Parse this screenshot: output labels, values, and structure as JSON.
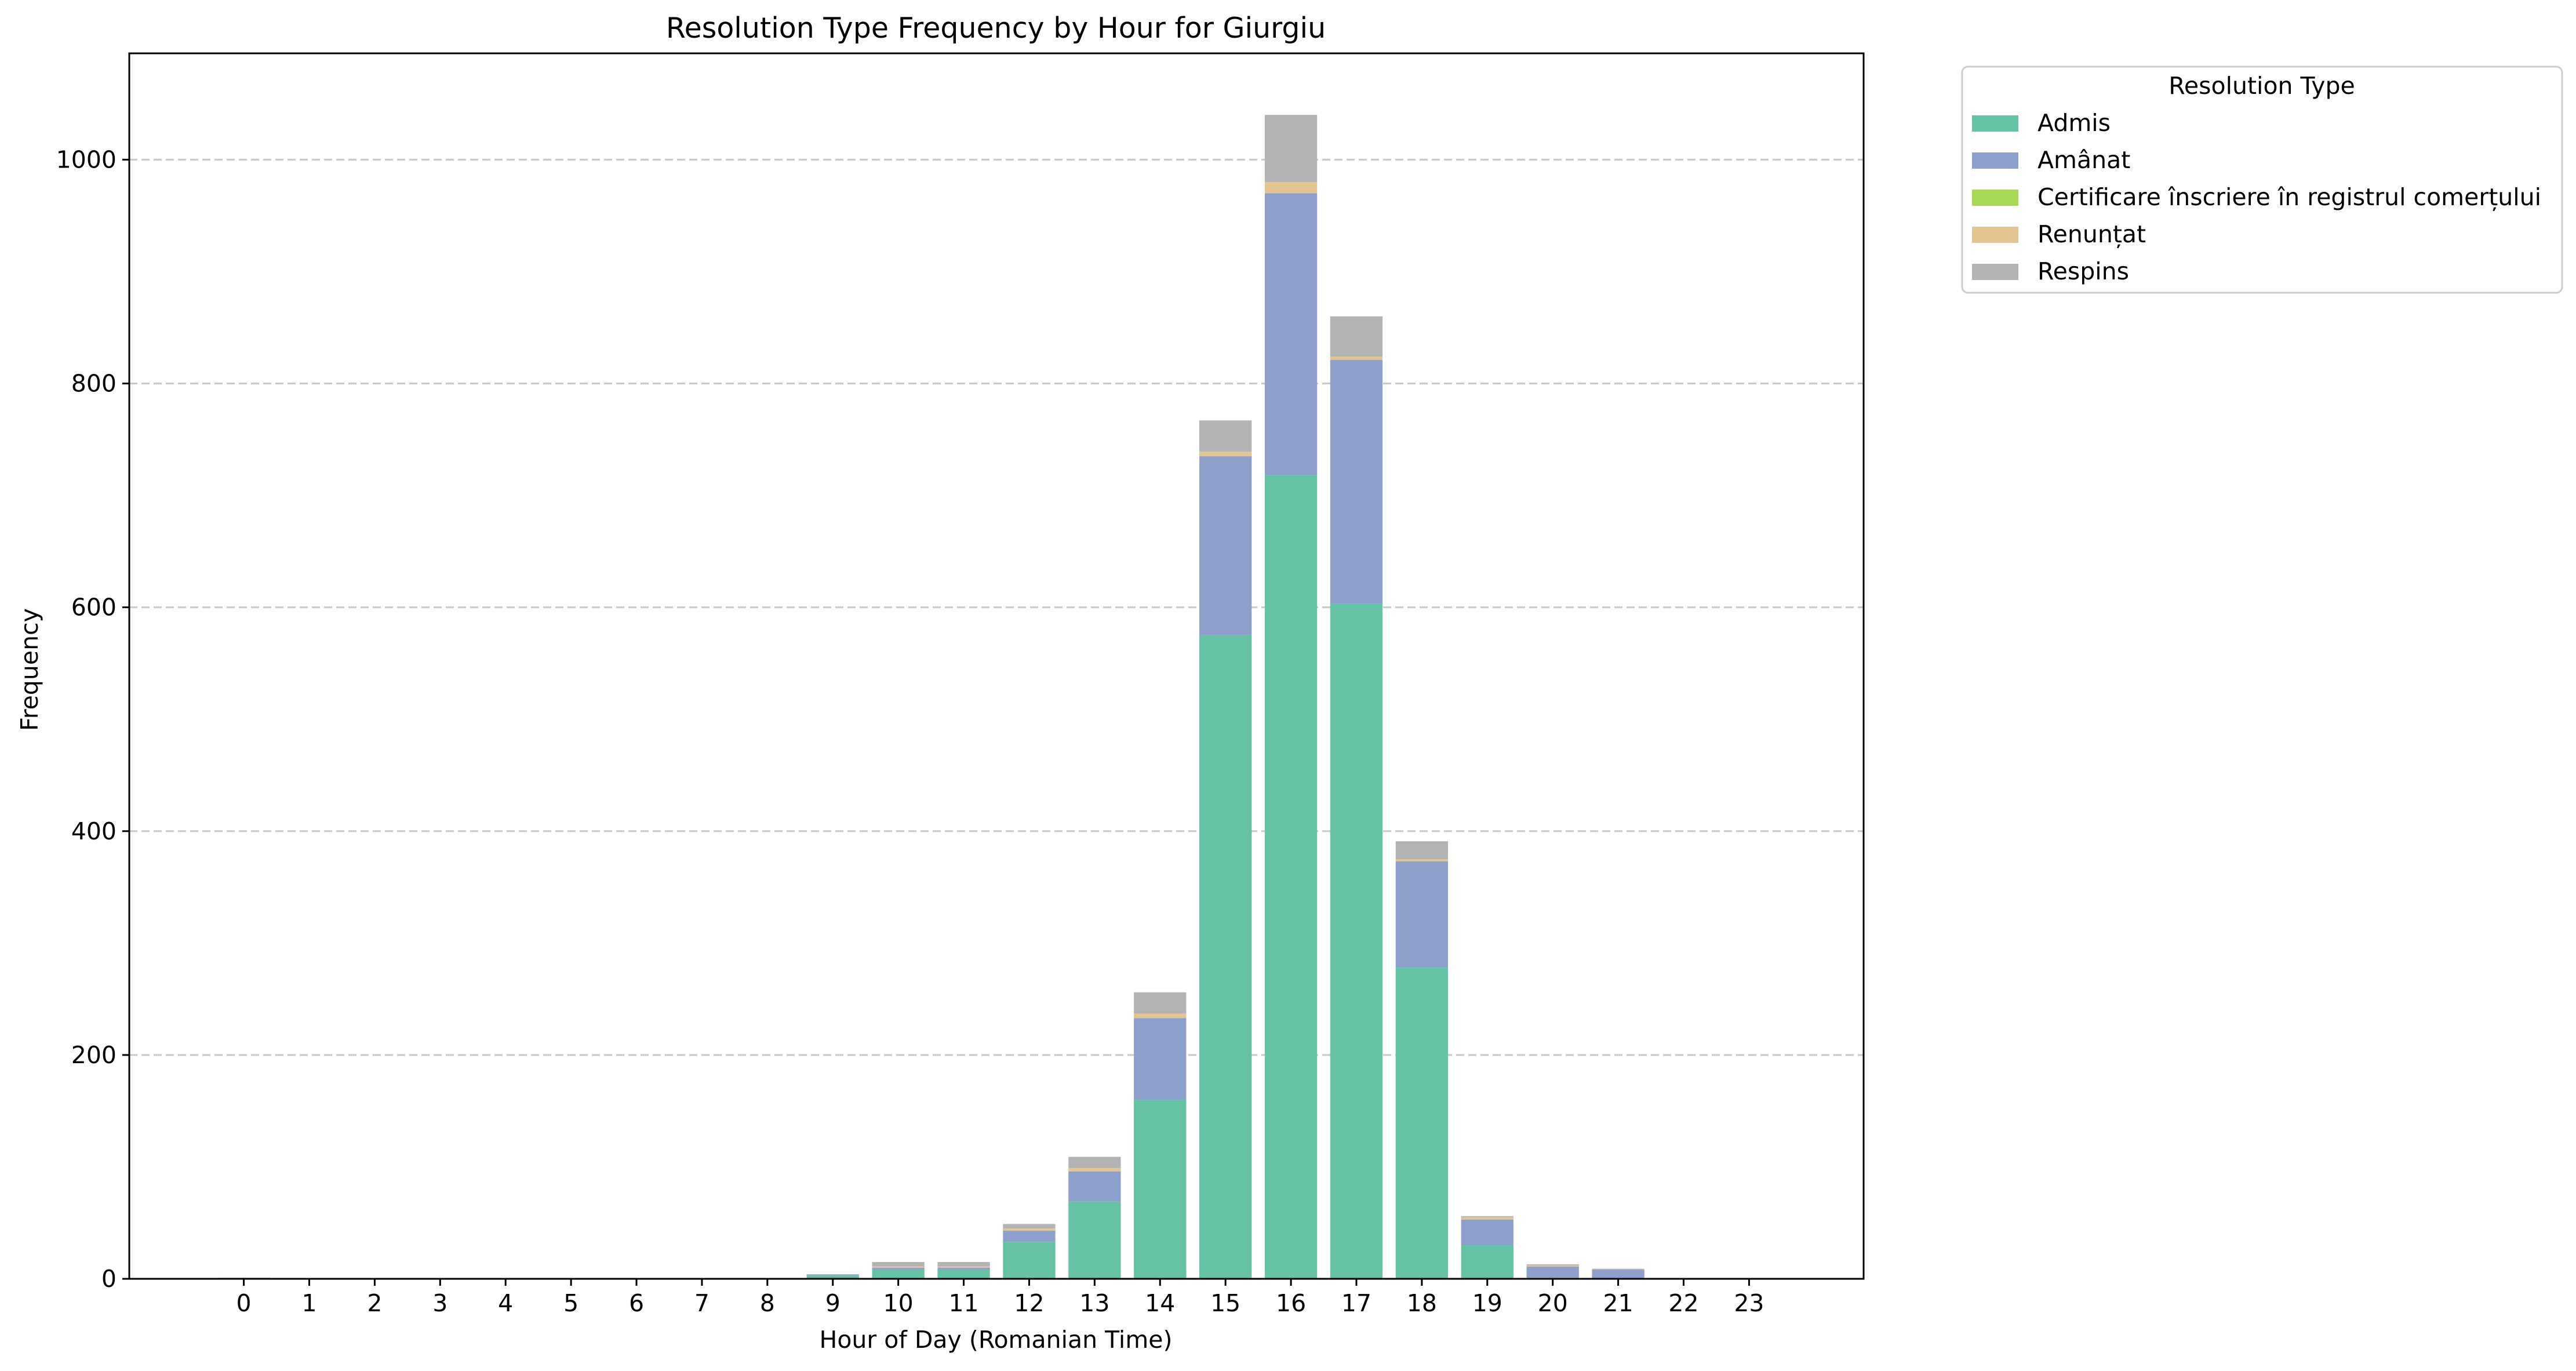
{
  "chart_data": {
    "type": "bar",
    "stacked": true,
    "title": "Resolution Type Frequency by Hour for Giurgiu",
    "xlabel": "Hour of Day (Romanian Time)",
    "ylabel": "Frequency",
    "categories": [
      "0",
      "1",
      "2",
      "3",
      "4",
      "5",
      "6",
      "7",
      "8",
      "9",
      "10",
      "11",
      "12",
      "13",
      "14",
      "15",
      "16",
      "17",
      "18",
      "19",
      "20",
      "21",
      "22",
      "23"
    ],
    "ylim": [
      0,
      1095
    ],
    "yticks": [
      0,
      200,
      400,
      600,
      800,
      1000
    ],
    "grid": "y-dashed",
    "legend": {
      "title": "Resolution Type",
      "placement": "outside-top-right"
    },
    "series": [
      {
        "name": "Admis",
        "color": "#66c2a5",
        "values": [
          1,
          0,
          0,
          0,
          0,
          0,
          0,
          0,
          0,
          3,
          8,
          8,
          33,
          69,
          160,
          575,
          718,
          603,
          278,
          30,
          1,
          0,
          0,
          0
        ]
      },
      {
        "name": "Amânat",
        "color": "#8da0cb",
        "values": [
          0,
          0,
          0,
          0,
          0,
          0,
          0,
          0,
          0,
          1,
          2,
          2,
          10,
          27,
          73,
          160,
          252,
          218,
          95,
          23,
          10,
          8,
          0,
          0
        ]
      },
      {
        "name": "Certificare înscriere în registrul comerțului",
        "color": "#a6d854",
        "values": [
          0,
          0,
          0,
          0,
          0,
          0,
          0,
          0,
          0,
          0,
          0,
          0,
          0,
          0,
          0,
          0,
          0,
          0,
          0,
          0,
          0,
          0,
          0,
          0
        ]
      },
      {
        "name": "Renunțat",
        "color": "#e5c494",
        "values": [
          0,
          0,
          0,
          0,
          0,
          0,
          0,
          0,
          0,
          0,
          1,
          1,
          2,
          3,
          4,
          4,
          10,
          3,
          2,
          2,
          1,
          0,
          0,
          0
        ]
      },
      {
        "name": "Respins",
        "color": "#b3b3b3",
        "values": [
          0,
          0,
          0,
          0,
          0,
          0,
          0,
          0,
          0,
          0,
          4,
          4,
          4,
          10,
          19,
          28,
          60,
          36,
          16,
          1,
          1,
          1,
          0,
          0
        ]
      }
    ]
  }
}
